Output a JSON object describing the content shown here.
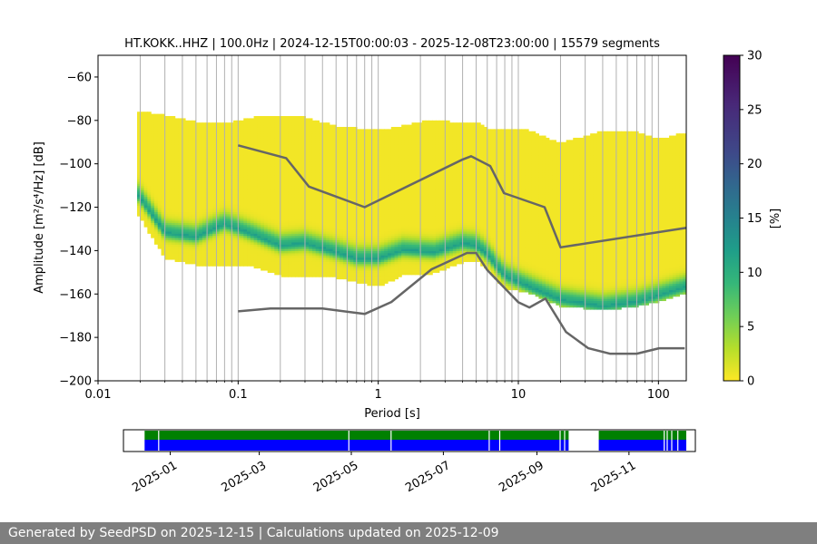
{
  "title": "HT.KOKK..HHZ | 100.0Hz | 2024-12-15T00:00:03 - 2025-12-08T23:00:00 | 15579 segments",
  "footer": "Generated by SeedPSD on 2025-12-15 | Calculations updated on 2025-12-09",
  "chart_data": [
    {
      "type": "heatmap",
      "title": "HT.KOKK..HHZ | 100.0Hz | 2024-12-15T00:00:03 - 2025-12-08T23:00:00 | 15579 segments",
      "xlabel": "Period [s]",
      "ylabel": "Amplitude [m²/s⁴/Hz] [dB]",
      "x_scale": "log",
      "xlim": [
        0.01,
        158
      ],
      "ylim": [
        -200,
        -50
      ],
      "x_ticks": [
        {
          "value": 0.01,
          "label": "0.01"
        },
        {
          "value": 0.1,
          "label": "0.1"
        },
        {
          "value": 1,
          "label": "1"
        },
        {
          "value": 10,
          "label": "10"
        },
        {
          "value": 100,
          "label": "100"
        }
      ],
      "y_ticks": [
        {
          "value": -60,
          "label": "−60"
        },
        {
          "value": -80,
          "label": "−80"
        },
        {
          "value": -100,
          "label": "−100"
        },
        {
          "value": -120,
          "label": "−120"
        },
        {
          "value": -140,
          "label": "−140"
        },
        {
          "value": -160,
          "label": "−160"
        },
        {
          "value": -180,
          "label": "−180"
        },
        {
          "value": -200,
          "label": "−200"
        }
      ],
      "grid": "vertical",
      "colormap": "viridis_r",
      "colorbar": {
        "label": "[%]",
        "range": [
          0,
          30
        ],
        "ticks": [
          {
            "value": 0,
            "label": "0"
          },
          {
            "value": 5,
            "label": "5"
          },
          {
            "value": 10,
            "label": "10"
          },
          {
            "value": 15,
            "label": "15"
          },
          {
            "value": 20,
            "label": "20"
          },
          {
            "value": 25,
            "label": "25"
          },
          {
            "value": 30,
            "label": "30"
          }
        ]
      },
      "psd_envelope": {
        "period": [
          0.019,
          0.03,
          0.05,
          0.08,
          0.13,
          0.2,
          0.3,
          0.5,
          0.7,
          1.0,
          1.5,
          2.5,
          4.0,
          5.0,
          6.0,
          8.0,
          12,
          20,
          40,
          70,
          100,
          158
        ],
        "mode": [
          -113,
          -131,
          -133,
          -127,
          -132,
          -137,
          -136,
          -140,
          -143,
          -143,
          -139,
          -140,
          -136,
          -137,
          -141,
          -151,
          -156,
          -162,
          -165,
          -163,
          -160,
          -156
        ],
        "upper": [
          -76,
          -78,
          -81,
          -82,
          -79,
          -78,
          -79,
          -83,
          -84,
          -85,
          -83,
          -80,
          -82,
          -81,
          -84,
          -84,
          -85,
          -91,
          -85,
          -86,
          -89,
          -86
        ],
        "lower": [
          -123,
          -144,
          -147,
          -147,
          -148,
          -152,
          -152,
          -153,
          -155,
          -157,
          -152,
          -151,
          -146,
          -145,
          -149,
          -158,
          -160,
          -166,
          -168,
          -166,
          -164,
          -160
        ]
      },
      "noise_models": {
        "nhnm": {
          "period": [
            0.1,
            0.22,
            0.32,
            0.8,
            4,
            4.6,
            6.3,
            7.9,
            15.4,
            20,
            354.8
          ],
          "db": [
            -91.5,
            -97.4,
            -110.5,
            -120,
            -98,
            -96.5,
            -101,
            -113.5,
            -120,
            -138.5,
            -126
          ]
        },
        "nlnm": {
          "period": [
            0.1,
            0.17,
            0.4,
            0.8,
            1.24,
            2.4,
            4.3,
            5.0,
            6.0,
            10.0,
            12.0,
            15.6,
            21.9,
            31.6,
            45.0,
            70.0,
            101.0,
            154.0
          ],
          "db": [
            -168,
            -166.7,
            -166.7,
            -169.2,
            -163.7,
            -148.6,
            -141.1,
            -141.1,
            -149.0,
            -163.8,
            -166.2,
            -162.1,
            -177.5,
            -185.0,
            -187.5,
            -187.5,
            -185.0,
            -185.0
          ]
        }
      }
    },
    {
      "type": "area",
      "title": "",
      "x_ticks": [
        "2025-01",
        "2025-03",
        "2025-05",
        "2025-07",
        "2025-09",
        "2025-11"
      ],
      "xlim": [
        "2024-12-01",
        "2025-12-15"
      ],
      "series": [
        {
          "color": "#008000",
          "ranges": [
            [
              "2024-12-15",
              "2025-09-22"
            ],
            [
              "2025-10-12",
              "2025-12-09"
            ]
          ]
        },
        {
          "color": "#0000ff",
          "ranges": [
            [
              "2024-12-15",
              "2025-09-22"
            ],
            [
              "2025-10-12",
              "2025-12-09"
            ]
          ]
        }
      ],
      "gaps": [
        "2024-12-24",
        "2025-04-29",
        "2025-05-27",
        "2025-07-31",
        "2025-08-07",
        "2025-09-16",
        "2025-09-19",
        "2025-11-24",
        "2025-11-26",
        "2025-11-29",
        "2025-12-03"
      ]
    }
  ]
}
